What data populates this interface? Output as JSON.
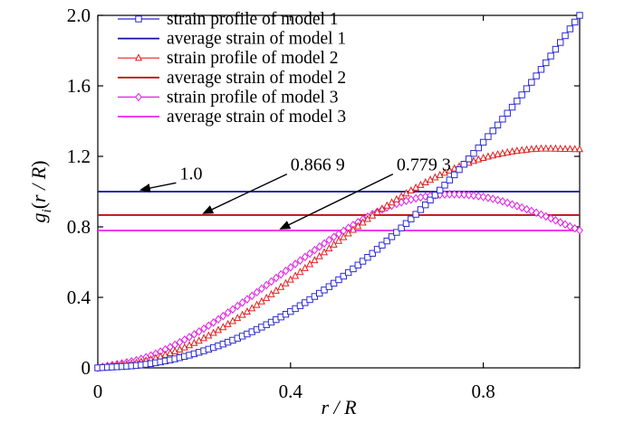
{
  "chart_data": {
    "type": "line",
    "xlabel": "r / R",
    "ylabel": "g_i(r / R)",
    "xlim": [
      0,
      1
    ],
    "ylim": [
      0,
      2.0
    ],
    "x_ticks": [
      0,
      0.4,
      0.8
    ],
    "x_tick_labels": [
      "0",
      "0.4",
      "0.8"
    ],
    "y_ticks": [
      0,
      0.4,
      0.8,
      1.2,
      1.6,
      2.0
    ],
    "y_tick_labels": [
      "0",
      "0.4",
      "0.8",
      "1.2",
      "1.6",
      "2.0"
    ],
    "grid": false,
    "legend_position": "top-left",
    "series": [
      {
        "name": "strain profile of model 1",
        "color": "#2b2bd0",
        "marker": "square",
        "x": [
          0,
          0.1,
          0.2,
          0.3,
          0.4,
          0.5,
          0.6,
          0.7,
          0.8,
          0.9,
          1.0
        ],
        "y": [
          0,
          0.02,
          0.08,
          0.18,
          0.32,
          0.5,
          0.72,
          0.98,
          1.28,
          1.62,
          2.0
        ]
      },
      {
        "name": "average strain of model 1",
        "color": "#1010a0",
        "marker": "none",
        "x": [
          0,
          1.0
        ],
        "y": [
          1.0,
          1.0
        ]
      },
      {
        "name": "strain profile of model 2",
        "color": "#e02020",
        "marker": "triangle",
        "x": [
          0,
          0.1,
          0.2,
          0.3,
          0.4,
          0.5,
          0.6,
          0.7,
          0.8,
          0.9,
          1.0
        ],
        "y": [
          0,
          0.04,
          0.14,
          0.3,
          0.5,
          0.72,
          0.92,
          1.08,
          1.19,
          1.24,
          1.24
        ]
      },
      {
        "name": "average strain of model 2",
        "color": "#c01010",
        "marker": "none",
        "x": [
          0,
          1.0
        ],
        "y": [
          0.8669,
          0.8669
        ]
      },
      {
        "name": "strain profile of model 3",
        "color": "#e020e0",
        "marker": "diamond",
        "x": [
          0,
          0.1,
          0.2,
          0.3,
          0.4,
          0.5,
          0.6,
          0.7,
          0.8,
          0.9,
          1.0
        ],
        "y": [
          0,
          0.06,
          0.19,
          0.37,
          0.57,
          0.76,
          0.91,
          0.98,
          0.97,
          0.89,
          0.78
        ]
      },
      {
        "name": "average strain of model 3",
        "color": "#ee22ee",
        "marker": "none",
        "x": [
          0,
          1.0
        ],
        "y": [
          0.7793,
          0.7793
        ]
      }
    ],
    "annotations": [
      {
        "text": "1.0",
        "x": 0.17,
        "y": 1.07,
        "arrow_to": [
          0.09,
          1.0
        ]
      },
      {
        "text": "0.866 9",
        "x": 0.4,
        "y": 1.12,
        "arrow_to": [
          0.22,
          0.8669
        ]
      },
      {
        "text": "0.779 3",
        "x": 0.62,
        "y": 1.12,
        "arrow_to": [
          0.38,
          0.7793
        ]
      }
    ]
  }
}
